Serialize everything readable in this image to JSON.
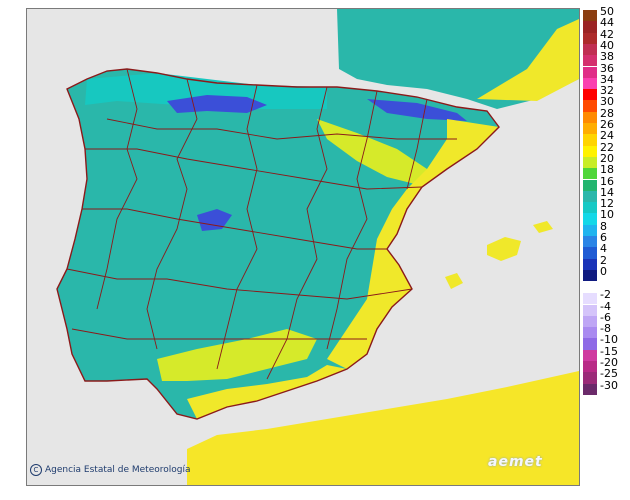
{
  "map": {
    "regions": [
      {
        "name": "peninsula",
        "color": "#2ab7aa"
      },
      {
        "name": "north_coast",
        "color": "#17c8c0"
      },
      {
        "name": "interior_cool",
        "color": "#3da8bf"
      },
      {
        "name": "ebro_valley",
        "color": "#d6ea2a"
      },
      {
        "name": "mediterranean_coast",
        "color": "#f0e82a"
      },
      {
        "name": "africa",
        "color": "#f6e628"
      },
      {
        "name": "mountains_cold",
        "color": "#3b4fd8"
      },
      {
        "name": "sea",
        "color": "#e6e6e6"
      }
    ],
    "border_color": "#8b1a1a"
  },
  "legend": {
    "top": [
      {
        "label": "50",
        "color": "#8b3d10"
      },
      {
        "label": "44",
        "color": "#9b2424"
      },
      {
        "label": "42",
        "color": "#ad2b2b"
      },
      {
        "label": "40",
        "color": "#c02f52"
      },
      {
        "label": "38",
        "color": "#d4306e"
      },
      {
        "label": "36",
        "color": "#e02d88"
      },
      {
        "label": "34",
        "color": "#fa3fb0"
      },
      {
        "label": "32",
        "color": "#ff0000"
      },
      {
        "label": "30",
        "color": "#ff4a00"
      },
      {
        "label": "28",
        "color": "#ff8a00"
      },
      {
        "label": "26",
        "color": "#ffad00"
      },
      {
        "label": "24",
        "color": "#ffd400"
      },
      {
        "label": "22",
        "color": "#fff200"
      },
      {
        "label": "20",
        "color": "#c8ed28"
      },
      {
        "label": "18",
        "color": "#4fd63a"
      },
      {
        "label": "16",
        "color": "#22b56e"
      },
      {
        "label": "14",
        "color": "#2ab7aa"
      },
      {
        "label": "12",
        "color": "#16c9c5"
      },
      {
        "label": "10",
        "color": "#14d8e8"
      },
      {
        "label": "8",
        "color": "#20b4ef"
      },
      {
        "label": "6",
        "color": "#2a84e6"
      },
      {
        "label": "4",
        "color": "#1f5bd4"
      },
      {
        "label": "2",
        "color": "#1a33b8"
      },
      {
        "label": "0",
        "color": "#101b80"
      }
    ],
    "bottom": [
      {
        "label": "-2",
        "color": "#e6ddff"
      },
      {
        "label": "-4",
        "color": "#d4c4fa"
      },
      {
        "label": "-6",
        "color": "#bea6f5"
      },
      {
        "label": "-8",
        "color": "#a98af0"
      },
      {
        "label": "-10",
        "color": "#8f6ae6"
      },
      {
        "label": "-15",
        "color": "#cf3aa0"
      },
      {
        "label": "-20",
        "color": "#b82b86"
      },
      {
        "label": "-25",
        "color": "#9b2b78"
      },
      {
        "label": "-30",
        "color": "#6b2a6a"
      }
    ]
  },
  "credit": {
    "text": "Agencia Estatal de Meteorología",
    "icon": "copyright-icon"
  },
  "logo": {
    "text": "aemet"
  }
}
